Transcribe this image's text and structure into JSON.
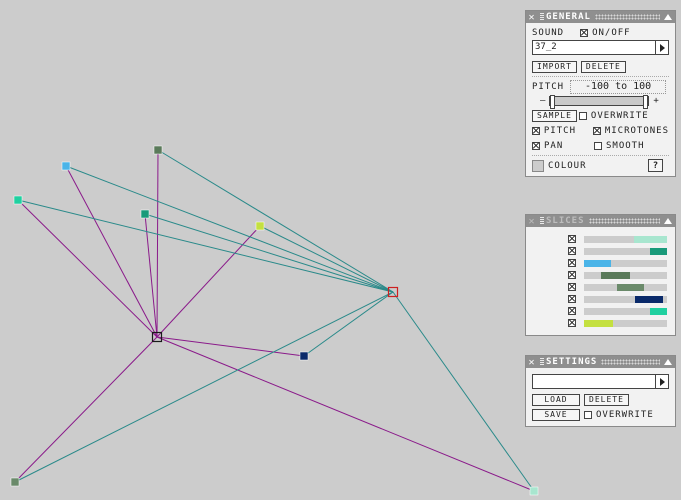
{
  "general": {
    "title": "GENERAL",
    "sound_label": "SOUND",
    "onoff_label": "ON/OFF",
    "onoff_checked": true,
    "sound_value": "37_2",
    "import_label": "IMPORT",
    "delete_label": "DELETE",
    "pitch_label": "PITCH",
    "pitch_range": "-100 to 100",
    "slider_min": "–",
    "slider_max": "+",
    "sample_label": "SAMPLE",
    "overwrite_label": "OVERWRITE",
    "pitch_cb_label": "PITCH",
    "microtones_label": "MICROTONES",
    "pan_label": "PAN",
    "smooth_label": "SMOOTH",
    "colour_label": "COLOUR",
    "help_label": "?"
  },
  "slices": {
    "title": "SLICES",
    "items": [
      {
        "checked": true,
        "color": "#a8e6cf",
        "start": 0.6,
        "end": 1.0
      },
      {
        "checked": true,
        "color": "#1a9a7a",
        "start": 0.8,
        "end": 1.0
      },
      {
        "checked": true,
        "color": "#4ab4e8",
        "start": 0.0,
        "end": 0.33
      },
      {
        "checked": true,
        "color": "#5a7a5a",
        "start": 0.2,
        "end": 0.55
      },
      {
        "checked": true,
        "color": "#6a8a6a",
        "start": 0.4,
        "end": 0.72
      },
      {
        "checked": true,
        "color": "#0a2a6a",
        "start": 0.62,
        "end": 0.95
      },
      {
        "checked": true,
        "color": "#20d0a0",
        "start": 0.8,
        "end": 1.0
      },
      {
        "checked": true,
        "color": "#c4e040",
        "start": 0.0,
        "end": 0.35
      }
    ]
  },
  "settings": {
    "title": "SETTINGS",
    "preset_value": "",
    "load_label": "LOAD",
    "delete_label": "DELETE",
    "save_label": "SAVE",
    "overwrite_label": "OVERWRITE"
  },
  "graph": {
    "line_colors": {
      "purple": "#8a1a8a",
      "teal": "#2a8a8a"
    },
    "hub_colors": {
      "center": "#1a1a1a",
      "red": "#cc2020"
    },
    "nodes": [
      {
        "name": "node-lightblue",
        "color": "#4ab4e8"
      },
      {
        "name": "node-olive-top",
        "color": "#5a7a5a"
      },
      {
        "name": "node-green-left",
        "color": "#20d0a0"
      },
      {
        "name": "node-teal",
        "color": "#1a9a7a"
      },
      {
        "name": "node-lime",
        "color": "#c4e040"
      },
      {
        "name": "node-navy",
        "color": "#0a2a6a"
      },
      {
        "name": "node-olive-bottom",
        "color": "#6a8a6a"
      },
      {
        "name": "node-mint",
        "color": "#a8e6cf"
      }
    ]
  }
}
